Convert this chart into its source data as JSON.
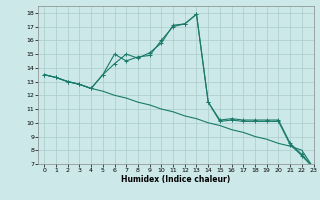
{
  "line1_x": [
    0,
    1,
    2,
    3,
    4,
    5,
    6,
    7,
    8,
    9,
    10,
    11,
    12,
    13,
    14,
    15,
    16,
    17,
    18,
    19,
    20,
    21,
    22,
    23
  ],
  "line1_y": [
    13.5,
    13.3,
    13.0,
    12.8,
    12.5,
    12.3,
    12.0,
    11.8,
    11.5,
    11.3,
    11.0,
    10.8,
    10.5,
    10.3,
    10.0,
    9.8,
    9.5,
    9.3,
    9.0,
    8.8,
    8.5,
    8.3,
    8.0,
    6.7
  ],
  "line2_x": [
    0,
    1,
    2,
    3,
    4,
    5,
    6,
    7,
    8,
    9,
    10,
    11,
    12,
    13,
    14,
    15,
    16,
    17,
    18,
    19,
    20,
    21,
    22,
    23
  ],
  "line2_y": [
    13.5,
    13.3,
    13.0,
    12.8,
    12.5,
    13.5,
    14.3,
    15.0,
    14.7,
    15.1,
    15.8,
    17.1,
    17.2,
    17.9,
    11.5,
    10.2,
    10.3,
    10.2,
    10.2,
    10.2,
    10.2,
    8.5,
    7.7,
    6.7
  ],
  "line3_x": [
    0,
    1,
    2,
    3,
    4,
    5,
    6,
    7,
    8,
    9,
    10,
    11,
    12,
    13,
    14,
    15,
    16,
    17,
    18,
    19,
    20,
    21,
    22,
    23
  ],
  "line3_y": [
    13.5,
    13.3,
    13.0,
    12.8,
    12.5,
    13.5,
    15.0,
    14.5,
    14.8,
    14.9,
    16.0,
    17.0,
    17.2,
    17.9,
    11.5,
    10.1,
    10.2,
    10.1,
    10.1,
    10.1,
    10.1,
    8.4,
    7.6,
    6.7
  ],
  "color": "#1a7a6a",
  "bg_color": "#cce8e8",
  "grid_color": "#aacccc",
  "xlabel": "Humidex (Indice chaleur)",
  "xlim": [
    -0.5,
    23
  ],
  "ylim": [
    7,
    18.5
  ],
  "xticks": [
    0,
    1,
    2,
    3,
    4,
    5,
    6,
    7,
    8,
    9,
    10,
    11,
    12,
    13,
    14,
    15,
    16,
    17,
    18,
    19,
    20,
    21,
    22,
    23
  ],
  "yticks": [
    7,
    8,
    9,
    10,
    11,
    12,
    13,
    14,
    15,
    16,
    17,
    18
  ]
}
